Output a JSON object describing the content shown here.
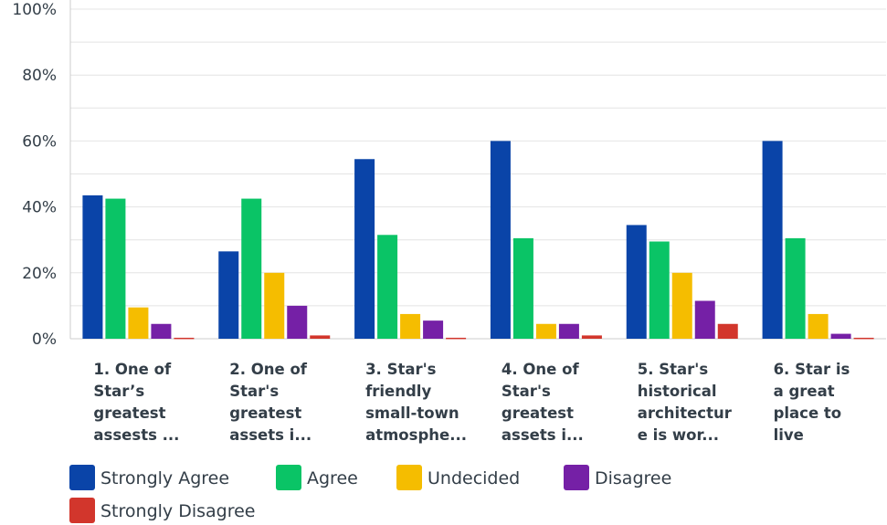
{
  "chart_data": {
    "type": "bar",
    "categories": [
      [
        "1. One of",
        "Star’s",
        "greatest",
        "assests ..."
      ],
      [
        "2. One of",
        "Star's",
        "greatest",
        "assets i..."
      ],
      [
        "3. Star's",
        "friendly",
        "small-town",
        "atmosphe..."
      ],
      [
        "4. One of",
        "Star's",
        "greatest",
        "assets i..."
      ],
      [
        "5. Star's",
        "historical",
        "architectur",
        "e is wor..."
      ],
      [
        "6. Star is",
        "a great",
        "place to",
        "live"
      ]
    ],
    "series": [
      {
        "name": "Strongly Agree",
        "color": "#0a44a8",
        "values": [
          43.5,
          26.5,
          54.5,
          60,
          34.5,
          60
        ]
      },
      {
        "name": "Agree",
        "color": "#0ac466",
        "values": [
          42.5,
          42.5,
          31.5,
          30.5,
          29.5,
          30.5
        ]
      },
      {
        "name": "Undecided",
        "color": "#f5bd00",
        "values": [
          9.5,
          20,
          7.5,
          4.5,
          20,
          7.5
        ]
      },
      {
        "name": "Disagree",
        "color": "#7520a6",
        "values": [
          4.5,
          10,
          5.5,
          4.5,
          11.5,
          1.5
        ]
      },
      {
        "name": "Strongly Disagree",
        "color": "#d2362c",
        "values": [
          0.3,
          1,
          0.3,
          1,
          4.5,
          0.3
        ]
      }
    ],
    "y_ticks": [
      "0%",
      "20%",
      "40%",
      "60%",
      "80%",
      "100%"
    ],
    "ylim": [
      0,
      100
    ],
    "grid": true,
    "legend_position": "bottom-left"
  }
}
